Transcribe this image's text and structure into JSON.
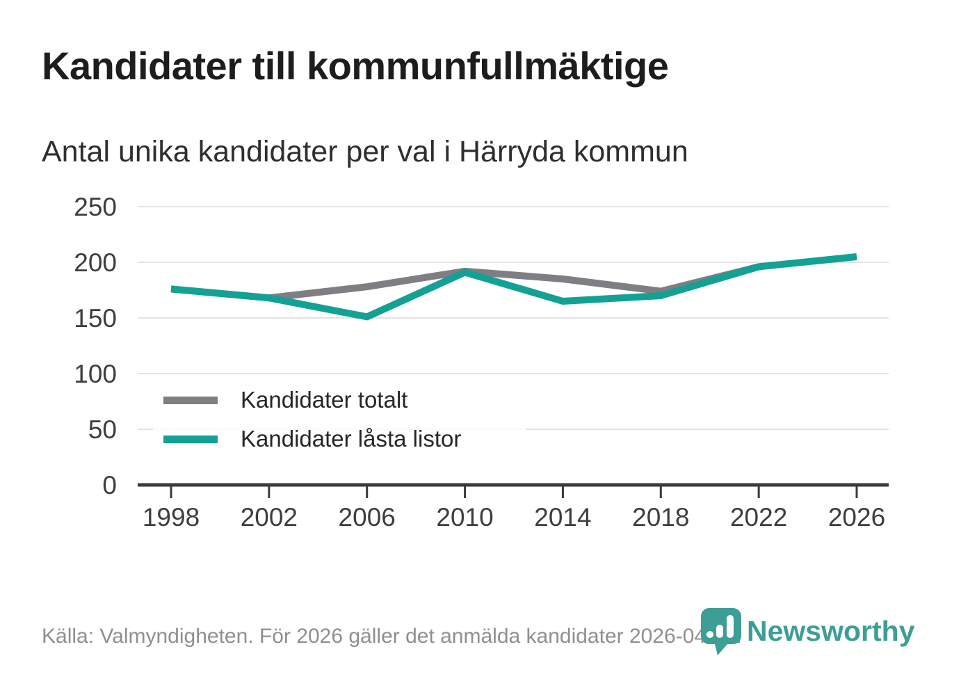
{
  "header": {
    "title": "Kandidater till kommunfullmäktige",
    "subtitle": "Antal unika kandidater per val i Härryda kommun"
  },
  "legend": [
    {
      "label": "Kandidater totalt",
      "color": "#7f7e82"
    },
    {
      "label": "Kandidater låsta listor",
      "color": "#14a195"
    }
  ],
  "footer": {
    "source_note": "Källa: Valmyndigheten. För 2026 gäller det anmälda kandidater 2026-04-10."
  },
  "branding": {
    "logo_text": "Newsworthy",
    "logo_icon": "newsworthy-pin-bar-chart-icon",
    "logo_color": "#3d9e96"
  },
  "colors": {
    "gridline": "#e3e3e3",
    "axis": "#3a3a3a",
    "tick_label": "#3d3d3d"
  },
  "chart_data": {
    "type": "line",
    "categories": [
      "1998",
      "2002",
      "2006",
      "2010",
      "2014",
      "2018",
      "2022",
      "2026"
    ],
    "series": [
      {
        "name": "Kandidater totalt",
        "color": "#7f7e82",
        "values": [
          176,
          168,
          178,
          192,
          185,
          174,
          196,
          null
        ]
      },
      {
        "name": "Kandidater låsta listor",
        "color": "#14a195",
        "values": [
          176,
          168,
          151,
          191,
          165,
          170,
          196,
          205
        ]
      }
    ],
    "title": "Kandidater till kommunfullmäktige",
    "xlabel": "",
    "ylabel": "",
    "ylim": [
      0,
      250
    ],
    "yticks": [
      0,
      50,
      100,
      150,
      200,
      250
    ],
    "grid": true,
    "legend_position": "inside-lower-left"
  }
}
